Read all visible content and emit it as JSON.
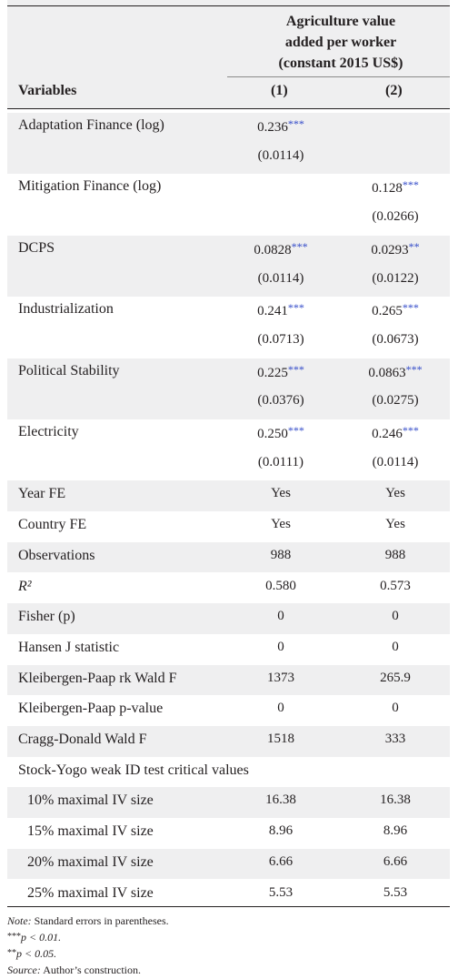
{
  "header": {
    "dependent_variable": [
      "Agriculture value",
      "added per worker",
      "(constant 2015 US$)"
    ],
    "variables_label": "Variables",
    "col1": "(1)",
    "col2": "(2)"
  },
  "coef_rows": [
    {
      "label": "Adaptation Finance (log)",
      "c1": "0.236",
      "c1s": "***",
      "c2": "",
      "c2s": "",
      "se1": "(0.0114)",
      "se2": ""
    },
    {
      "label": "Mitigation Finance (log)",
      "c1": "",
      "c1s": "",
      "c2": "0.128",
      "c2s": "***",
      "se1": "",
      "se2": "(0.0266)"
    },
    {
      "label": "DCPS",
      "c1": "0.0828",
      "c1s": "***",
      "c2": "0.0293",
      "c2s": "**",
      "se1": "(0.0114)",
      "se2": "(0.0122)"
    },
    {
      "label": "Industrialization",
      "c1": "0.241",
      "c1s": "***",
      "c2": "0.265",
      "c2s": "***",
      "se1": "(0.0713)",
      "se2": "(0.0673)"
    },
    {
      "label": "Political Stability",
      "c1": "0.225",
      "c1s": "***",
      "c2": "0.0863",
      "c2s": "***",
      "se1": "(0.0376)",
      "se2": "(0.0275)"
    },
    {
      "label": "Electricity",
      "c1": "0.250",
      "c1s": "***",
      "c2": "0.246",
      "c2s": "***",
      "se1": "(0.0111)",
      "se2": "(0.0114)"
    }
  ],
  "stat_rows": [
    {
      "label": "Year FE",
      "c1": "Yes",
      "c2": "Yes"
    },
    {
      "label": "Country FE",
      "c1": "Yes",
      "c2": "Yes"
    },
    {
      "label": "Observations",
      "c1": "988",
      "c2": "988"
    },
    {
      "label": "R²",
      "c1": "0.580",
      "c2": "0.573"
    },
    {
      "label": "Fisher (p)",
      "c1": "0",
      "c2": "0"
    },
    {
      "label": "Hansen J statistic",
      "c1": "0",
      "c2": "0"
    },
    {
      "label": "Kleibergen-Paap rk Wald F",
      "c1": "1373",
      "c2": "265.9"
    },
    {
      "label": "Kleibergen-Paap p-value",
      "c1": "0",
      "c2": "0"
    },
    {
      "label": "Cragg-Donald Wald F",
      "c1": "1518",
      "c2": "333"
    },
    {
      "label": "Stock-Yogo weak ID test critical values",
      "c1": "",
      "c2": ""
    },
    {
      "label": "10% maximal IV size",
      "c1": "16.38",
      "c2": "16.38",
      "indent": true
    },
    {
      "label": "15% maximal IV size",
      "c1": "8.96",
      "c2": "8.96",
      "indent": true
    },
    {
      "label": "20% maximal IV size",
      "c1": "6.66",
      "c2": "6.66",
      "indent": true
    },
    {
      "label": "25% maximal IV size",
      "c1": "5.53",
      "c2": "5.53",
      "indent": true
    }
  ],
  "notes": {
    "note_label": "Note:",
    "note_text": "Standard errors in parentheses.",
    "star3": "***",
    "star3_text": "p < 0.01.",
    "star2": "**",
    "star2_text": "p < 0.05.",
    "source_label": "Source:",
    "source_text": "Author’s construction."
  },
  "colors": {
    "shade": "#efeff0",
    "stars": "#3048c8",
    "text": "#231f20"
  }
}
